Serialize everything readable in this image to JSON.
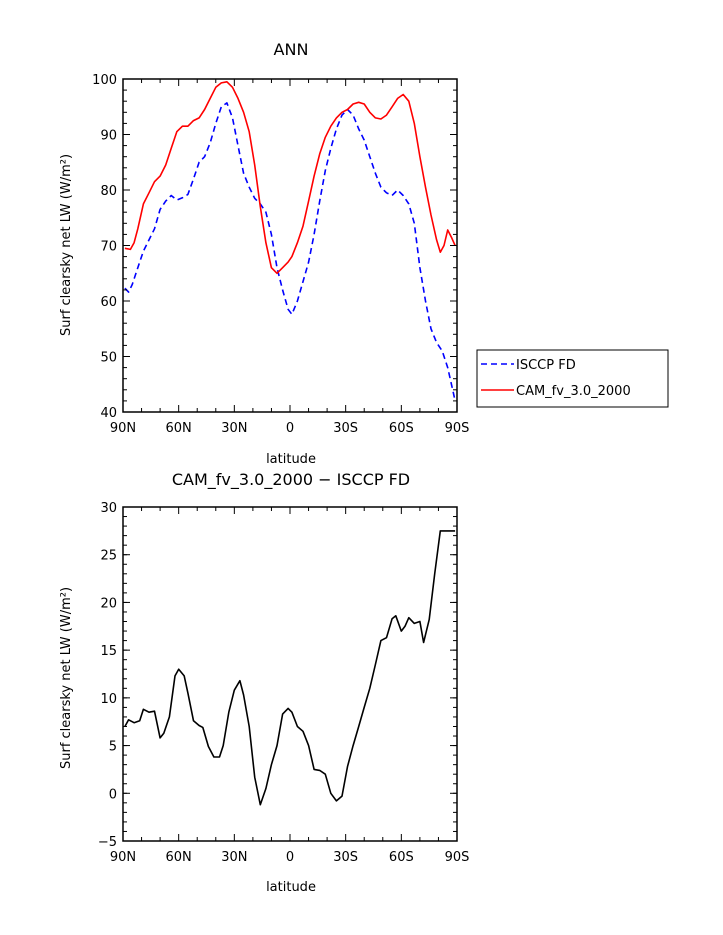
{
  "chart_data": [
    {
      "type": "line",
      "title": "ANN",
      "xlabel": "latitude",
      "ylabel": "Surf clearsky net LW (W/m²)",
      "xlim": [
        90,
        -90
      ],
      "ylim": [
        40,
        100
      ],
      "x_ticks": [
        "90N",
        "60N",
        "30N",
        "0",
        "30S",
        "60S",
        "90S"
      ],
      "x_tick_values": [
        90,
        60,
        30,
        0,
        -30,
        -60,
        -90
      ],
      "y_ticks": [
        40,
        50,
        60,
        70,
        80,
        90,
        100
      ],
      "legend_position": "right",
      "series": [
        {
          "name": "ISCCP FD",
          "color": "#0000ff",
          "dash": "dashed",
          "x": [
            89,
            87,
            85,
            82,
            79,
            76,
            73,
            70,
            67,
            64,
            61,
            58,
            55,
            52,
            49,
            46,
            43,
            40,
            37,
            34,
            31,
            28,
            25,
            22,
            19,
            16,
            13,
            10,
            7,
            4,
            1,
            -1,
            -4,
            -7,
            -10,
            -13,
            -16,
            -19,
            -22,
            -25,
            -28,
            -31,
            -34,
            -37,
            -40,
            -43,
            -46,
            -49,
            -52,
            -55,
            -58,
            -61,
            -64,
            -67,
            -70,
            -73,
            -76,
            -79,
            -82,
            -85,
            -88,
            -89
          ],
          "y": [
            62.3,
            61.6,
            63.0,
            66.0,
            69.0,
            71.0,
            73.0,
            76.5,
            78.0,
            79.0,
            78.2,
            78.6,
            79.2,
            82.0,
            85.0,
            86.0,
            88.5,
            92.0,
            95.0,
            95.7,
            93.0,
            88.0,
            83.0,
            80.5,
            78.5,
            77.5,
            76.0,
            72.0,
            66.0,
            62.0,
            58.5,
            57.6,
            60.0,
            63.5,
            67.0,
            72.0,
            78.0,
            83.5,
            87.5,
            91.0,
            93.5,
            94.5,
            93.5,
            91.0,
            89.0,
            86.0,
            83.0,
            80.5,
            79.5,
            79.0,
            80.0,
            79.0,
            77.5,
            74.0,
            66.0,
            60.0,
            55.0,
            52.5,
            51.0,
            48.0,
            43.5,
            42.0
          ]
        },
        {
          "name": "CAM_fv_3.0_2000",
          "color": "#ff0000",
          "dash": "solid",
          "x": [
            89,
            86,
            84,
            82,
            79,
            76,
            73,
            70,
            67,
            64,
            61,
            58,
            55,
            52,
            49,
            46,
            43,
            40,
            37,
            34,
            31,
            28,
            25,
            22,
            19,
            16,
            13,
            10,
            7,
            4,
            1,
            -1,
            -4,
            -7,
            -10,
            -13,
            -16,
            -19,
            -22,
            -25,
            -28,
            -31,
            -34,
            -37,
            -40,
            -43,
            -46,
            -49,
            -52,
            -55,
            -58,
            -61,
            -64,
            -67,
            -70,
            -73,
            -76,
            -79,
            -81,
            -83,
            -85,
            -87,
            -89
          ],
          "y": [
            69.5,
            69.3,
            70.5,
            73.0,
            77.5,
            79.5,
            81.5,
            82.5,
            84.5,
            87.5,
            90.5,
            91.5,
            91.5,
            92.5,
            93.0,
            94.5,
            96.5,
            98.5,
            99.3,
            99.5,
            98.5,
            96.5,
            94.0,
            90.5,
            84.5,
            77.0,
            70.5,
            66.0,
            65.0,
            66.0,
            67.0,
            68.0,
            70.5,
            73.5,
            78.0,
            82.5,
            86.5,
            89.5,
            91.5,
            93.0,
            94.0,
            94.5,
            95.5,
            95.8,
            95.5,
            94.0,
            93.0,
            92.8,
            93.5,
            95.0,
            96.5,
            97.2,
            96.0,
            92.0,
            86.0,
            80.5,
            75.5,
            71.0,
            68.8,
            70.0,
            72.8,
            71.5,
            70.0
          ]
        }
      ]
    },
    {
      "type": "line",
      "title": "CAM_fv_3.0_2000 − ISCCP FD",
      "xlabel": "latitude",
      "ylabel": "Surf clearsky net LW (W/m²)",
      "xlim": [
        90,
        -90
      ],
      "ylim": [
        -5,
        30
      ],
      "x_ticks": [
        "90N",
        "60N",
        "30N",
        "0",
        "30S",
        "60S",
        "90S"
      ],
      "x_tick_values": [
        90,
        60,
        30,
        0,
        -30,
        -60,
        -90
      ],
      "y_ticks": [
        -5,
        0,
        5,
        10,
        15,
        20,
        25,
        30
      ],
      "series": [
        {
          "color": "#000000",
          "dash": "solid",
          "x": [
            89,
            87,
            84,
            81,
            79,
            76,
            73,
            70,
            68,
            65,
            62,
            60,
            57,
            55,
            52,
            49,
            47,
            44,
            41,
            38,
            36,
            33,
            30,
            27,
            25,
            22,
            19,
            16,
            13,
            10,
            7,
            4,
            1,
            -1,
            -4,
            -7,
            -10,
            -13,
            -16,
            -19,
            -22,
            -25,
            -28,
            -31,
            -34,
            -37,
            -40,
            -43,
            -46,
            -49,
            -52,
            -55,
            -57,
            -60,
            -62,
            -64,
            -67,
            -70,
            -72,
            -75,
            -78,
            -81,
            -84,
            -87,
            -89
          ],
          "y": [
            7.0,
            7.7,
            7.4,
            7.6,
            8.8,
            8.5,
            8.6,
            5.8,
            6.3,
            8.0,
            12.3,
            13.0,
            12.3,
            10.5,
            7.6,
            7.1,
            6.9,
            4.9,
            3.8,
            3.8,
            5.0,
            8.5,
            10.8,
            11.8,
            10.3,
            7.0,
            1.7,
            -1.2,
            0.5,
            3.0,
            5.0,
            8.3,
            8.9,
            8.5,
            7.0,
            6.5,
            5.0,
            2.5,
            2.4,
            2.0,
            0.0,
            -0.8,
            -0.3,
            2.8,
            5.0,
            7.0,
            9.0,
            11.0,
            13.5,
            16.0,
            16.3,
            18.3,
            18.6,
            17.0,
            17.5,
            18.4,
            17.8,
            18.0,
            15.8,
            18.2,
            23.0,
            27.5,
            27.5,
            27.5,
            27.5
          ]
        }
      ]
    }
  ]
}
